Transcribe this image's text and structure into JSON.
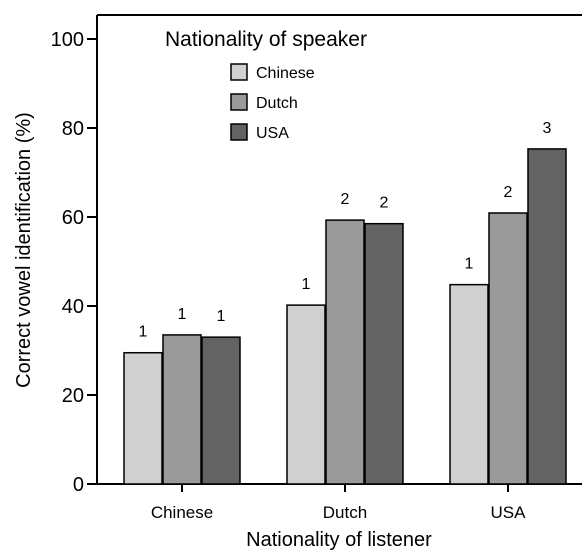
{
  "chart_data": {
    "type": "bar",
    "xlabel": "Nationality of listener",
    "ylabel": "Correct vowel identification (%)",
    "ylim": [
      0,
      100
    ],
    "yticks": [
      0,
      20,
      40,
      60,
      80,
      100
    ],
    "categories": [
      "Chinese",
      "Dutch",
      "USA"
    ],
    "legend": {
      "title": "Nationality of speaker",
      "position": "top-left"
    },
    "series": [
      {
        "name": "Chinese",
        "color": "#d0d0d0",
        "values": [
          29.5,
          40.2,
          44.8
        ],
        "labels": [
          "1",
          "1",
          "1"
        ]
      },
      {
        "name": "Dutch",
        "color": "#9a9a9a",
        "values": [
          33.5,
          59.3,
          60.9
        ],
        "labels": [
          "1",
          "2",
          "2"
        ]
      },
      {
        "name": "USA",
        "color": "#636363",
        "values": [
          33.0,
          58.5,
          75.3
        ],
        "labels": [
          "1",
          "2",
          "3"
        ]
      }
    ],
    "grid": false
  }
}
